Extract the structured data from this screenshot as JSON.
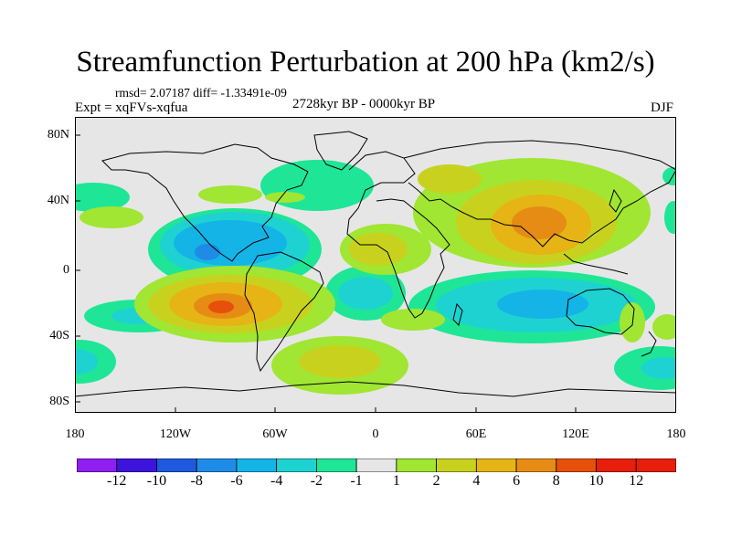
{
  "title": "Streamfunction Perturbation at 200 hPa (km2/s)",
  "stats": "rmsd= 2.07187 diff= -1.33491e-09",
  "experiment": "Expt = xqFVs-xqfua",
  "period": "2728kyr BP - 0000kyr BP",
  "season": "DJF",
  "y_axis_labels": [
    "80N",
    "40N",
    "0",
    "40S",
    "80S"
  ],
  "x_axis_labels": [
    "180",
    "120W",
    "60W",
    "0",
    "60E",
    "120E",
    "180"
  ],
  "colorbar": {
    "labels": [
      "-12",
      "-10",
      "-8",
      "-6",
      "-4",
      "-2",
      "-1",
      "1",
      "2",
      "4",
      "6",
      "8",
      "10",
      "12"
    ],
    "colors": [
      "#8f1ef0",
      "#3c14dc",
      "#1e5ae0",
      "#1e8ce6",
      "#14b4e6",
      "#1ed2d2",
      "#1ee696",
      "#e6e6e6",
      "#a0e632",
      "#c8d21e",
      "#e6b414",
      "#e68c14",
      "#e6500a",
      "#e61e0a"
    ]
  },
  "map": {
    "background": "#e6e6e6"
  }
}
